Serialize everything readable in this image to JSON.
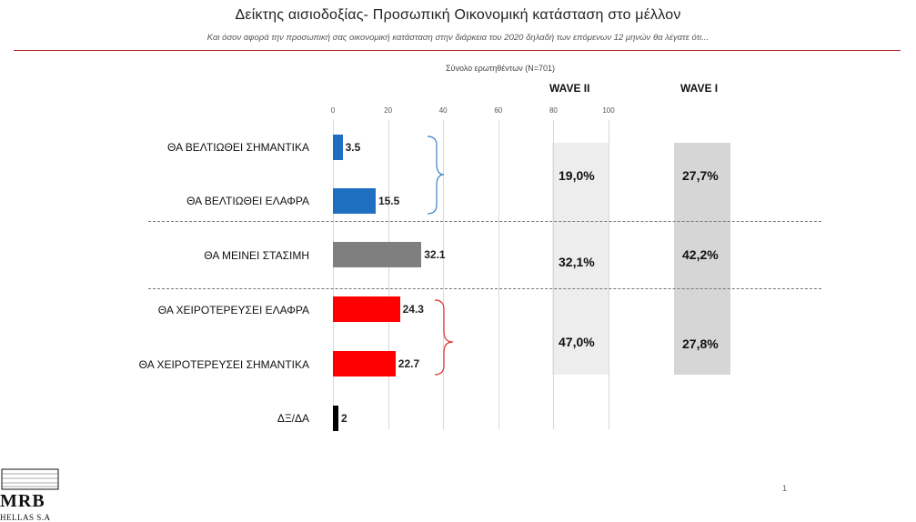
{
  "header": {
    "title": "Δείκτης αισιοδοξίας- Προσωπική Οικονομική κατάσταση στο μέλλον",
    "subtitle": "Και όσον αφορά την προσωπική σας οικονομική κατάσταση στην διάρκεια του 2020 δηλαδή των επόμενων 12 μηνών θα λέγατε ότι..."
  },
  "chart_data": {
    "type": "bar",
    "orientation": "horizontal",
    "base_label": "Σύνολο ερωτηθέντων (N=701)",
    "xlim": [
      0,
      100
    ],
    "xticks": [
      "0",
      "20",
      "40",
      "60",
      "80",
      "100"
    ],
    "grid": true,
    "categories": [
      "ΘΑ ΒΕΛΤΙΩΘΕΙ ΣΗΜΑΝΤΙΚΑ",
      "ΘΑ ΒΕΛΤΙΩΘΕΙ ΕΛΑΦΡΑ",
      "ΘΑ ΜΕΙΝΕΙ ΣΤΑΣΙΜΗ",
      "ΘΑ ΧΕΙΡΟΤΕΡΕΥΣΕΙ ΕΛΑΦΡΑ",
      "ΘΑ ΧΕΙΡΟΤΕΡΕΥΣΕΙ ΣΗΜΑΝΤΙΚΑ",
      "ΔΞ/ΔΑ"
    ],
    "values": [
      3.5,
      15.5,
      32.1,
      24.3,
      22.7,
      2
    ],
    "value_labels": [
      "3.5",
      "15.5",
      "32.1",
      "24.3",
      "22.7",
      "2"
    ],
    "colors": [
      "#1f6fc1",
      "#1f6fc1",
      "#7f7f7f",
      "#ff0000",
      "#ff0000",
      "#000000"
    ],
    "summary_columns": [
      {
        "name": "WAVE II",
        "values": [
          "19,0%",
          "32,1%",
          "47,0%"
        ]
      },
      {
        "name": "WAVE I",
        "values": [
          "27,7%",
          "42,2%",
          "27,8%"
        ]
      }
    ]
  },
  "logo": {
    "name": "MRB",
    "sub": "HELLAS S.A"
  },
  "footer": {
    "page_number": "1"
  },
  "colors": {
    "accent_rule": "#b3262d",
    "panel_wave2": "#ededed",
    "panel_wave1": "#d6d6d6"
  }
}
